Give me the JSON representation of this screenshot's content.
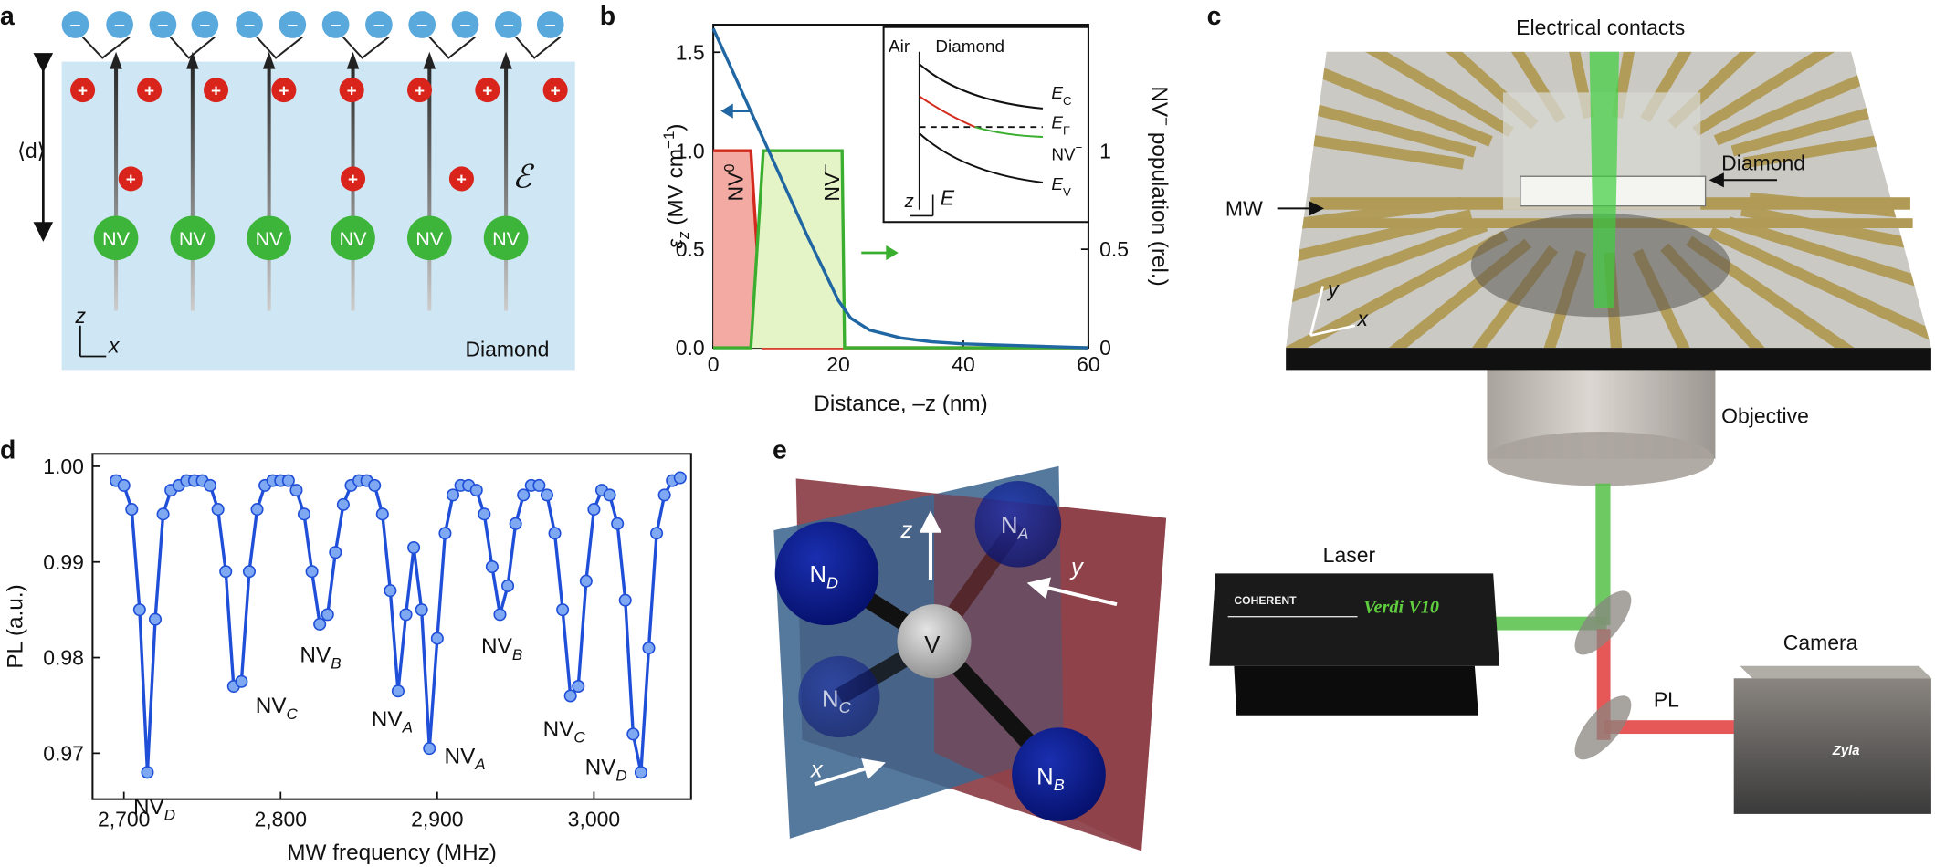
{
  "panels": {
    "a": {
      "label": "a",
      "d_symbol": "⟨d⟩",
      "field_symbol": "ℰ",
      "material": "Diamond",
      "nv": "NV",
      "plus": "+",
      "minus": "−",
      "axis_z": "z",
      "axis_x": "x"
    },
    "c": {
      "label": "c",
      "contacts": "Electrical contacts",
      "diamond": "Diamond",
      "mw": "MW",
      "objective": "Objective",
      "laser": "Laser",
      "camera": "Camera",
      "pl": "PL",
      "axis_y": "y",
      "axis_x": "x",
      "laser_brand": "COHERENT",
      "laser_model": "Verdi V10",
      "camera_model": "Zyla"
    },
    "e": {
      "label": "e",
      "atoms": [
        {
          "text": "N",
          "sub": "D"
        },
        {
          "text": "N",
          "sub": "A"
        },
        {
          "text": "N",
          "sub": "C"
        },
        {
          "text": "N",
          "sub": "B"
        }
      ],
      "vacancy": "V",
      "axis_z": "z",
      "axis_y": "y",
      "axis_x": "x"
    }
  },
  "chart_data": [
    {
      "type": "line",
      "panel_label": "b",
      "xlabel": "Distance, –z (nm)",
      "ylabel": {
        "symbol": "ε",
        "sub": "z",
        "unit": " (MV cm",
        "sup": "−1",
        "close": ")"
      },
      "y2label": {
        "text": "NV",
        "sup": "−",
        "rest": " population (rel.)"
      },
      "xlim": [
        0,
        60
      ],
      "xticks": [
        0,
        20,
        40,
        60
      ],
      "ylim": [
        0,
        1.64
      ],
      "yticks": [
        {
          "value": 0,
          "label": "0.0"
        },
        0.5,
        {
          "value": 1,
          "label": "1.0"
        },
        1.5
      ],
      "y2lim": [
        0,
        1.64
      ],
      "y2ticks": [
        0,
        0.5,
        1
      ],
      "series": [
        {
          "color": "#d42a1e",
          "fill": "#f2aaa2",
          "axis": "y2",
          "x": [
            0,
            6,
            7,
            8,
            60
          ],
          "values": [
            1,
            1,
            0.5,
            0,
            0
          ]
        },
        {
          "color": "#3aae2e",
          "fill": "#e4f4c6",
          "axis": "y2",
          "x": [
            0,
            6,
            7,
            8,
            20.6,
            21,
            60
          ],
          "values": [
            0,
            0,
            0.5,
            1,
            1,
            0,
            0
          ]
        },
        {
          "color": "#1f66a3",
          "x": [
            0,
            5,
            10,
            15,
            20,
            22,
            25,
            30,
            35,
            40,
            50,
            60
          ],
          "values": [
            1.62,
            1.27,
            0.92,
            0.57,
            0.24,
            0.15,
            0.09,
            0.05,
            0.03,
            0.02,
            0.01,
            0
          ]
        }
      ],
      "annotations": [
        {
          "text": "NV",
          "sup": "0"
        },
        {
          "text": "NV",
          "sup": "−"
        }
      ],
      "inset": {
        "left": "Air",
        "right": "Diamond",
        "levels": [
          {
            "text": "E",
            "sub": "C"
          },
          {
            "text": "E",
            "sub": "F"
          },
          {
            "text": "NV",
            "sup": "−"
          },
          {
            "text": "E",
            "sub": "V"
          }
        ],
        "axis_z": "z",
        "axis_e": "E"
      }
    },
    {
      "type": "scatter",
      "panel_label": "d",
      "xlabel": "MW frequency (MHz)",
      "ylabel": "PL (a.u.)",
      "xlim": [
        2680,
        3062
      ],
      "xticks": [
        {
          "value": 2700,
          "label": "2,700"
        },
        {
          "value": 2800,
          "label": "2,800"
        },
        {
          "value": 2900,
          "label": "2,900"
        },
        {
          "value": 3000,
          "label": "3,000"
        }
      ],
      "ylim": [
        0.9652,
        1.0013
      ],
      "yticks": [
        0.97,
        0.98,
        0.99,
        {
          "value": 1,
          "label": "1.00"
        }
      ],
      "series": [
        {
          "color": "#1f4fd8",
          "fill": "#7fa8f2",
          "x": [
            2695,
            2700,
            2705,
            2710,
            2715,
            2720,
            2725,
            2730,
            2735,
            2740,
            2745,
            2750,
            2755,
            2760,
            2765,
            2770,
            2775,
            2780,
            2785,
            2790,
            2795,
            2800,
            2805,
            2810,
            2815,
            2820,
            2825,
            2830,
            2835,
            2840,
            2845,
            2850,
            2855,
            2860,
            2865,
            2870,
            2875,
            2880,
            2885,
            2890,
            2895,
            2900,
            2905,
            2910,
            2915,
            2920,
            2925,
            2930,
            2935,
            2940,
            2945,
            2950,
            2955,
            2960,
            2965,
            2970,
            2975,
            2980,
            2985,
            2990,
            2995,
            3000,
            3005,
            3010,
            3015,
            3020,
            3025,
            3030,
            3035,
            3040,
            3045,
            3050,
            3055
          ],
          "values": [
            0.9985,
            0.998,
            0.9955,
            0.985,
            0.968,
            0.984,
            0.995,
            0.9975,
            0.998,
            0.9985,
            0.9985,
            0.9985,
            0.998,
            0.9955,
            0.989,
            0.977,
            0.9775,
            0.989,
            0.9955,
            0.998,
            0.9985,
            0.9985,
            0.9985,
            0.9975,
            0.995,
            0.989,
            0.9835,
            0.9845,
            0.991,
            0.996,
            0.998,
            0.9985,
            0.9985,
            0.998,
            0.995,
            0.987,
            0.9765,
            0.9845,
            0.9915,
            0.985,
            0.9705,
            0.982,
            0.993,
            0.997,
            0.998,
            0.998,
            0.9975,
            0.995,
            0.9895,
            0.9845,
            0.9875,
            0.994,
            0.997,
            0.998,
            0.998,
            0.997,
            0.993,
            0.985,
            0.976,
            0.977,
            0.988,
            0.9955,
            0.9975,
            0.997,
            0.994,
            0.986,
            0.972,
            0.968,
            0.981,
            0.993,
            0.997,
            0.9985,
            0.9988
          ]
        }
      ],
      "annotations": [
        {
          "text": "NV",
          "sub": "D"
        },
        {
          "text": "NV",
          "sub": "C"
        },
        {
          "text": "NV",
          "sub": "B"
        },
        {
          "text": "NV",
          "sub": "A"
        },
        {
          "text": "NV",
          "sub": "A"
        },
        {
          "text": "NV",
          "sub": "B"
        },
        {
          "text": "NV",
          "sub": "C"
        },
        {
          "text": "NV",
          "sub": "D"
        }
      ]
    }
  ]
}
